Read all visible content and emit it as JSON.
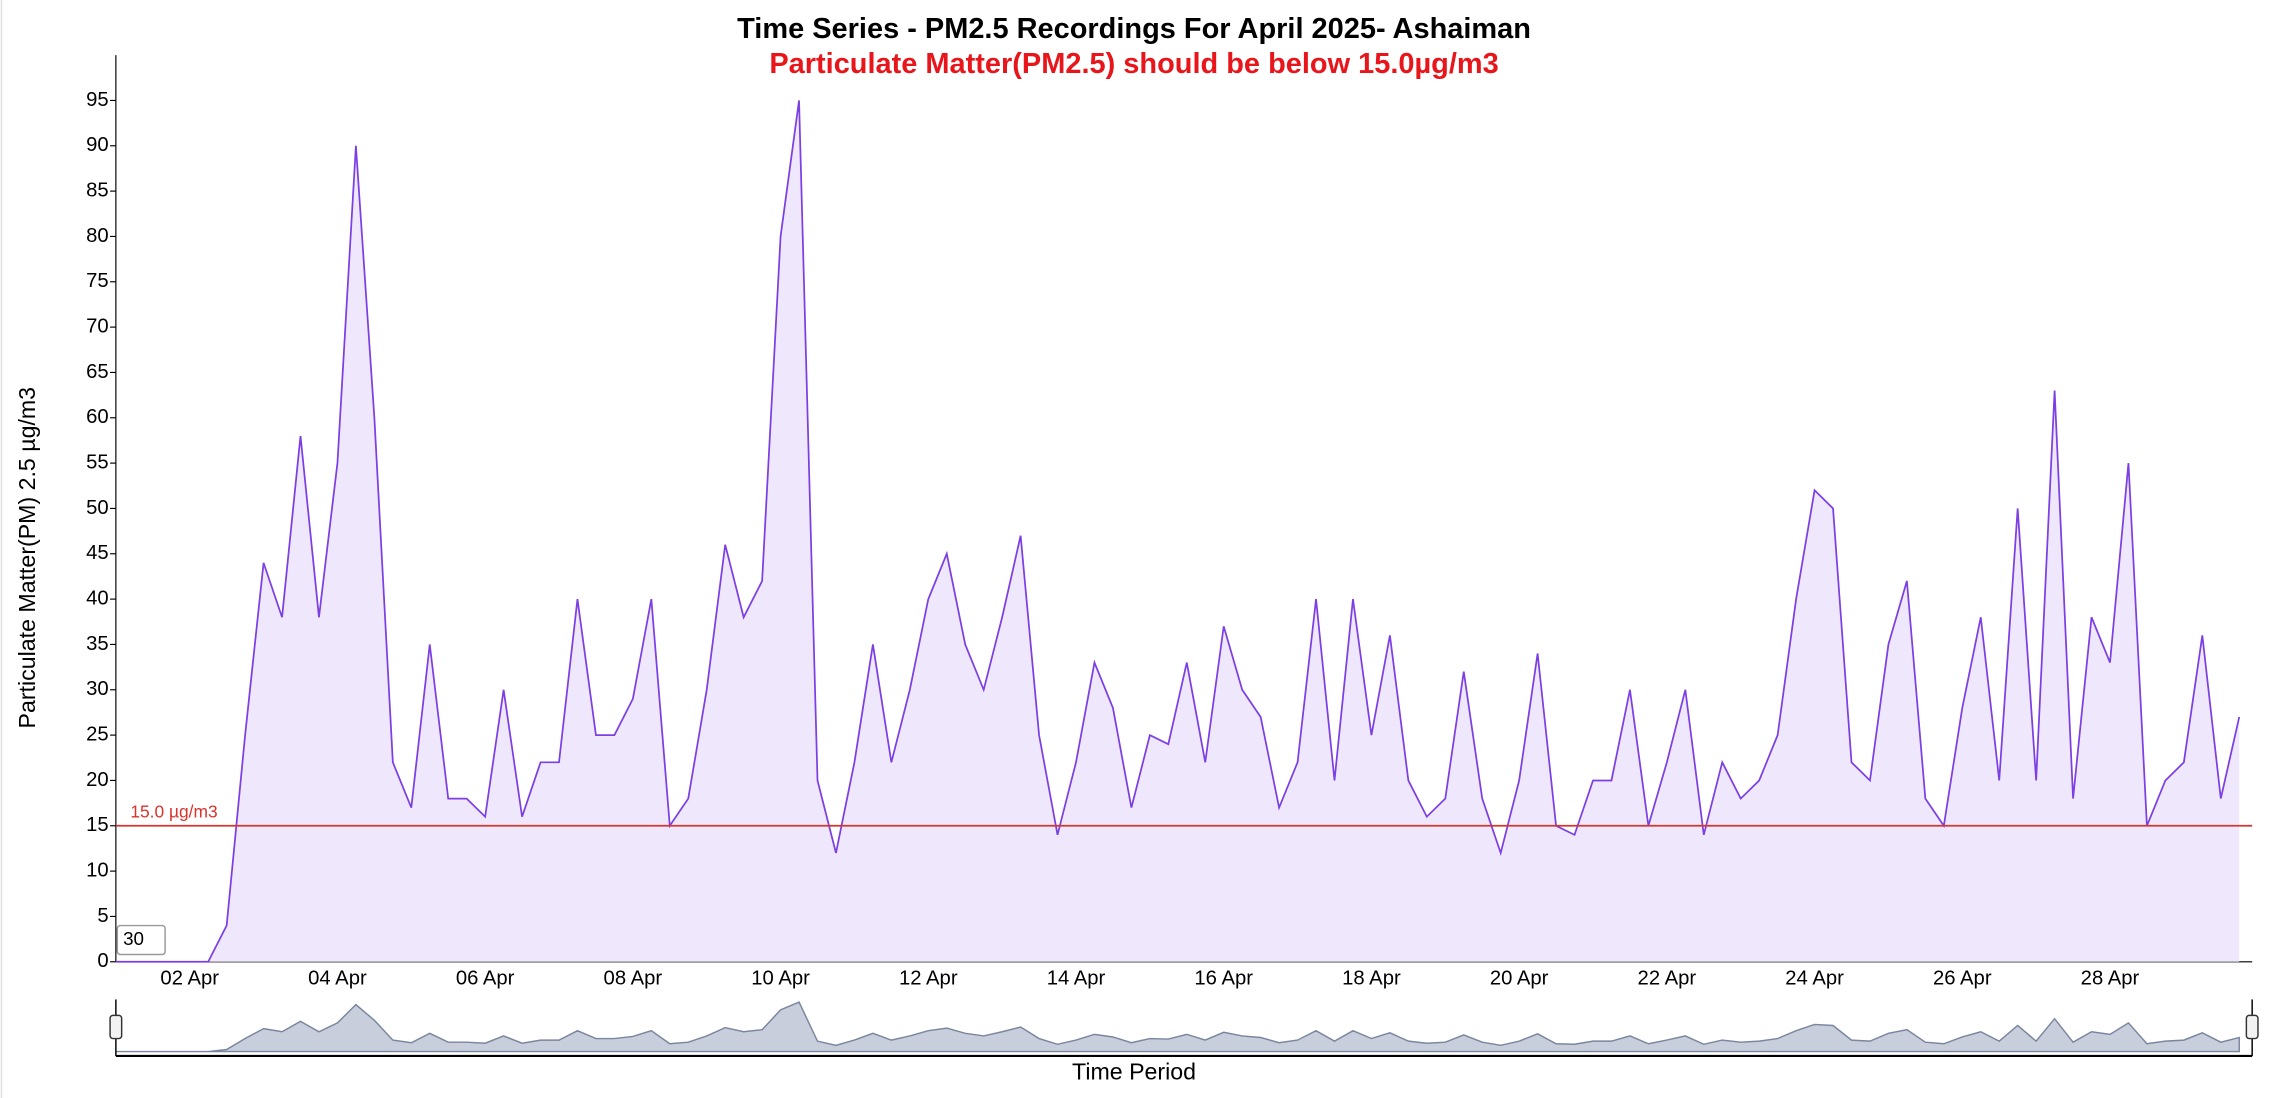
{
  "chart_data": {
    "type": "area",
    "title": "Time Series - PM2.5 Recordings For April 2025- Ashaiman",
    "subtitle": "Particulate Matter(PM2.5) should be below 15.0µg/m3",
    "y_label": "Particulate Matter(PM) 2.5 µg/m3",
    "x_label": "Time Period",
    "zoom_input": "30",
    "color": "#7b3fe4",
    "fill": "#efe8fc",
    "threshold": {
      "value": 15,
      "label": "15.0 µg/m3",
      "color": "#d9342b"
    },
    "ylim": [
      0,
      100
    ],
    "yticks": [
      0,
      5,
      10,
      15,
      20,
      25,
      30,
      35,
      40,
      45,
      50,
      55,
      60,
      65,
      70,
      75,
      80,
      85,
      90,
      95
    ],
    "categories": [
      null,
      null,
      null,
      null,
      "02 Apr",
      null,
      null,
      null,
      null,
      null,
      null,
      null,
      "04 Apr",
      null,
      null,
      null,
      null,
      null,
      null,
      null,
      "06 Apr",
      null,
      null,
      null,
      null,
      null,
      null,
      null,
      "08 Apr",
      null,
      null,
      null,
      null,
      null,
      null,
      null,
      "10 Apr",
      null,
      null,
      null,
      null,
      null,
      null,
      null,
      "12 Apr",
      null,
      null,
      null,
      null,
      null,
      null,
      null,
      "14 Apr",
      null,
      null,
      null,
      null,
      null,
      null,
      null,
      "16 Apr",
      null,
      null,
      null,
      null,
      null,
      null,
      null,
      "18 Apr",
      null,
      null,
      null,
      null,
      null,
      null,
      null,
      "20 Apr",
      null,
      null,
      null,
      null,
      null,
      null,
      null,
      "22 Apr",
      null,
      null,
      null,
      null,
      null,
      null,
      null,
      "24 Apr",
      null,
      null,
      null,
      null,
      null,
      null,
      null,
      "26 Apr",
      null,
      null,
      null,
      null,
      null,
      null,
      null,
      "28 Apr",
      null,
      null,
      null,
      null,
      null,
      null,
      null
    ],
    "values": [
      0,
      0,
      0,
      0,
      0,
      0,
      4,
      25,
      44,
      38,
      58,
      38,
      55,
      90,
      60,
      22,
      17,
      35,
      18,
      18,
      16,
      30,
      16,
      22,
      22,
      40,
      25,
      25,
      29,
      40,
      15,
      18,
      30,
      46,
      38,
      42,
      80,
      95,
      20,
      12,
      22,
      35,
      22,
      30,
      40,
      45,
      35,
      30,
      38,
      47,
      25,
      14,
      22,
      33,
      28,
      17,
      25,
      24,
      33,
      22,
      37,
      30,
      27,
      17,
      22,
      40,
      20,
      40,
      25,
      36,
      20,
      16,
      18,
      32,
      18,
      12,
      20,
      34,
      15,
      14,
      20,
      20,
      30,
      15,
      22,
      30,
      14,
      22,
      18,
      20,
      25,
      40,
      52,
      50,
      22,
      20,
      35,
      42,
      18,
      15,
      28,
      38,
      20,
      50,
      20,
      63,
      18,
      38,
      33,
      55,
      15,
      20,
      22,
      36,
      18,
      27
    ]
  }
}
